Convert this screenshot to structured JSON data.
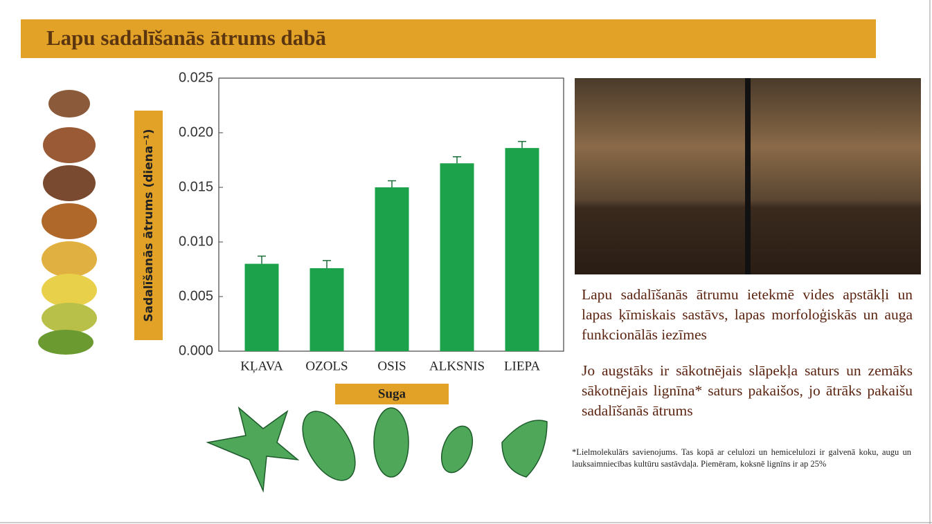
{
  "title": "Lapu sadalīšanās ātrums dabā",
  "chart_data": {
    "type": "bar",
    "y_label": "Sadalīšanās ātrums (diena⁻¹)",
    "x_label": "Suga",
    "categories": [
      "KĻAVA",
      "OZOLS",
      "OSIS",
      "ALKSNIS",
      "LIEPA"
    ],
    "values": [
      0.008,
      0.0076,
      0.015,
      0.0172,
      0.0186
    ],
    "error": [
      0.0007,
      0.0007,
      0.0006,
      0.0006,
      0.0006
    ],
    "color": "#1ba24b",
    "ylim": [
      0,
      0.025
    ],
    "yticks": [
      {
        "value": 0,
        "label": "0.000"
      },
      0.005,
      {
        "value": 0.01,
        "label": "0.010"
      },
      0.015,
      {
        "value": 0.02,
        "label": "0.020"
      },
      0.025
    ]
  },
  "paragraphs": [
    "Lapu sadalīšanās ātrumu ietekmē vides apstākļi un lapas ķīmiskais sastāvs, lapas morfoloģiskās un auga funkcionālās iezīmes",
    "Jo augstāks ir sākotnējais slāpekļa saturs un zemāks sākotnējais lignīna* saturs pakaišos, jo ātrāks pakaišu sadalīšanās ātrums"
  ],
  "footnote": "*Lielmolekulārs savienojums. Tas kopā ar celulozi un hemicelulozi ir galvenā koku, augu un lauksaimniecības kultūru sastāvdaļa. Piemēram, koksnē lignīns ir ap 25%"
}
